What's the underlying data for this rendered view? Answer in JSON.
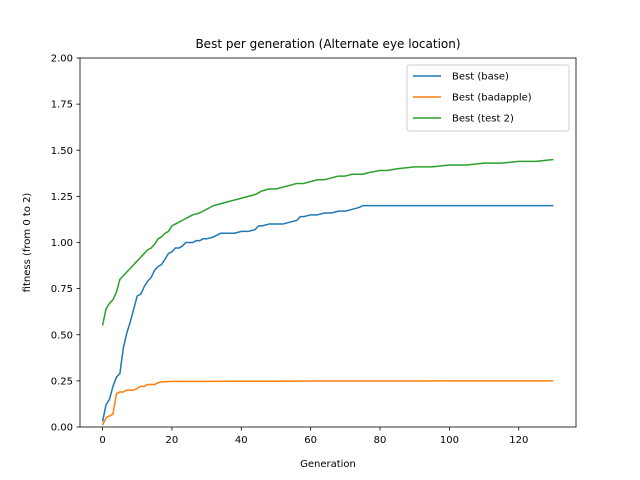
{
  "chart_data": {
    "type": "line",
    "title": "Best per generation (Alternate eye location)",
    "xlabel": "Generation",
    "ylabel": "fitness (from 0 to 2)",
    "xlim": [
      -6.5,
      136.5
    ],
    "ylim": [
      0,
      2
    ],
    "xticks": [
      0,
      20,
      40,
      60,
      80,
      100,
      120
    ],
    "xtick_labels": [
      "0",
      "20",
      "40",
      "60",
      "80",
      "100",
      "120"
    ],
    "yticks": [
      0,
      0.25,
      0.5,
      0.75,
      1.0,
      1.25,
      1.5,
      1.75,
      2.0
    ],
    "ytick_labels": [
      "0.00",
      "0.25",
      "0.50",
      "0.75",
      "1.00",
      "1.25",
      "1.50",
      "1.75",
      "2.00"
    ],
    "grid": false,
    "legend_position": "top-right",
    "series": [
      {
        "name": "Best (base)",
        "color": "#1f77b4",
        "points": [
          [
            0,
            0.03
          ],
          [
            1,
            0.12
          ],
          [
            2,
            0.15
          ],
          [
            3,
            0.22
          ],
          [
            4,
            0.27
          ],
          [
            5,
            0.29
          ],
          [
            6,
            0.43
          ],
          [
            7,
            0.51
          ],
          [
            8,
            0.57
          ],
          [
            9,
            0.64
          ],
          [
            10,
            0.71
          ],
          [
            11,
            0.72
          ],
          [
            12,
            0.76
          ],
          [
            13,
            0.79
          ],
          [
            14,
            0.81
          ],
          [
            15,
            0.85
          ],
          [
            16,
            0.87
          ],
          [
            17,
            0.88
          ],
          [
            18,
            0.91
          ],
          [
            19,
            0.94
          ],
          [
            20,
            0.95
          ],
          [
            21,
            0.97
          ],
          [
            22,
            0.97
          ],
          [
            23,
            0.98
          ],
          [
            24,
            1.0
          ],
          [
            25,
            1.0
          ],
          [
            26,
            1.0
          ],
          [
            27,
            1.01
          ],
          [
            28,
            1.01
          ],
          [
            29,
            1.02
          ],
          [
            30,
            1.02
          ],
          [
            32,
            1.03
          ],
          [
            34,
            1.05
          ],
          [
            36,
            1.05
          ],
          [
            38,
            1.05
          ],
          [
            40,
            1.06
          ],
          [
            42,
            1.06
          ],
          [
            44,
            1.07
          ],
          [
            45,
            1.09
          ],
          [
            46,
            1.09
          ],
          [
            48,
            1.1
          ],
          [
            50,
            1.1
          ],
          [
            52,
            1.1
          ],
          [
            54,
            1.11
          ],
          [
            56,
            1.12
          ],
          [
            57,
            1.14
          ],
          [
            58,
            1.14
          ],
          [
            60,
            1.15
          ],
          [
            62,
            1.15
          ],
          [
            64,
            1.16
          ],
          [
            66,
            1.16
          ],
          [
            68,
            1.17
          ],
          [
            70,
            1.17
          ],
          [
            72,
            1.18
          ],
          [
            74,
            1.19
          ],
          [
            75,
            1.2
          ],
          [
            80,
            1.2
          ],
          [
            90,
            1.2
          ],
          [
            100,
            1.2
          ],
          [
            110,
            1.2
          ],
          [
            120,
            1.2
          ],
          [
            130,
            1.2
          ]
        ]
      },
      {
        "name": "Best (badapple)",
        "color": "#ff7f0e",
        "points": [
          [
            0,
            0.01
          ],
          [
            1,
            0.05
          ],
          [
            2,
            0.06
          ],
          [
            3,
            0.07
          ],
          [
            4,
            0.18
          ],
          [
            5,
            0.19
          ],
          [
            6,
            0.19
          ],
          [
            7,
            0.2
          ],
          [
            8,
            0.2
          ],
          [
            9,
            0.2
          ],
          [
            10,
            0.21
          ],
          [
            11,
            0.22
          ],
          [
            12,
            0.22
          ],
          [
            13,
            0.23
          ],
          [
            14,
            0.23
          ],
          [
            15,
            0.23
          ],
          [
            16,
            0.24
          ],
          [
            17,
            0.245
          ],
          [
            18,
            0.245
          ],
          [
            20,
            0.247
          ],
          [
            30,
            0.247
          ],
          [
            40,
            0.248
          ],
          [
            50,
            0.248
          ],
          [
            60,
            0.249
          ],
          [
            70,
            0.249
          ],
          [
            80,
            0.249
          ],
          [
            90,
            0.249
          ],
          [
            100,
            0.25
          ],
          [
            110,
            0.25
          ],
          [
            120,
            0.25
          ],
          [
            130,
            0.25
          ]
        ]
      },
      {
        "name": "Best (test 2)",
        "color": "#2ca02c",
        "points": [
          [
            0,
            0.55
          ],
          [
            1,
            0.64
          ],
          [
            2,
            0.67
          ],
          [
            3,
            0.69
          ],
          [
            4,
            0.73
          ],
          [
            5,
            0.8
          ],
          [
            6,
            0.82
          ],
          [
            7,
            0.84
          ],
          [
            8,
            0.86
          ],
          [
            9,
            0.88
          ],
          [
            10,
            0.9
          ],
          [
            11,
            0.92
          ],
          [
            12,
            0.94
          ],
          [
            13,
            0.96
          ],
          [
            14,
            0.97
          ],
          [
            15,
            0.99
          ],
          [
            16,
            1.02
          ],
          [
            17,
            1.03
          ],
          [
            18,
            1.05
          ],
          [
            19,
            1.06
          ],
          [
            20,
            1.09
          ],
          [
            21,
            1.1
          ],
          [
            22,
            1.11
          ],
          [
            23,
            1.12
          ],
          [
            24,
            1.13
          ],
          [
            25,
            1.14
          ],
          [
            26,
            1.15
          ],
          [
            28,
            1.16
          ],
          [
            30,
            1.18
          ],
          [
            32,
            1.2
          ],
          [
            34,
            1.21
          ],
          [
            36,
            1.22
          ],
          [
            38,
            1.23
          ],
          [
            40,
            1.24
          ],
          [
            42,
            1.25
          ],
          [
            44,
            1.26
          ],
          [
            45,
            1.27
          ],
          [
            46,
            1.28
          ],
          [
            48,
            1.29
          ],
          [
            50,
            1.29
          ],
          [
            52,
            1.3
          ],
          [
            54,
            1.31
          ],
          [
            56,
            1.32
          ],
          [
            58,
            1.32
          ],
          [
            60,
            1.33
          ],
          [
            62,
            1.34
          ],
          [
            64,
            1.34
          ],
          [
            66,
            1.35
          ],
          [
            68,
            1.36
          ],
          [
            70,
            1.36
          ],
          [
            72,
            1.37
          ],
          [
            75,
            1.37
          ],
          [
            77,
            1.38
          ],
          [
            80,
            1.39
          ],
          [
            82,
            1.39
          ],
          [
            85,
            1.4
          ],
          [
            90,
            1.41
          ],
          [
            95,
            1.41
          ],
          [
            100,
            1.42
          ],
          [
            105,
            1.42
          ],
          [
            110,
            1.43
          ],
          [
            115,
            1.43
          ],
          [
            120,
            1.44
          ],
          [
            125,
            1.44
          ],
          [
            130,
            1.45
          ]
        ]
      }
    ]
  }
}
